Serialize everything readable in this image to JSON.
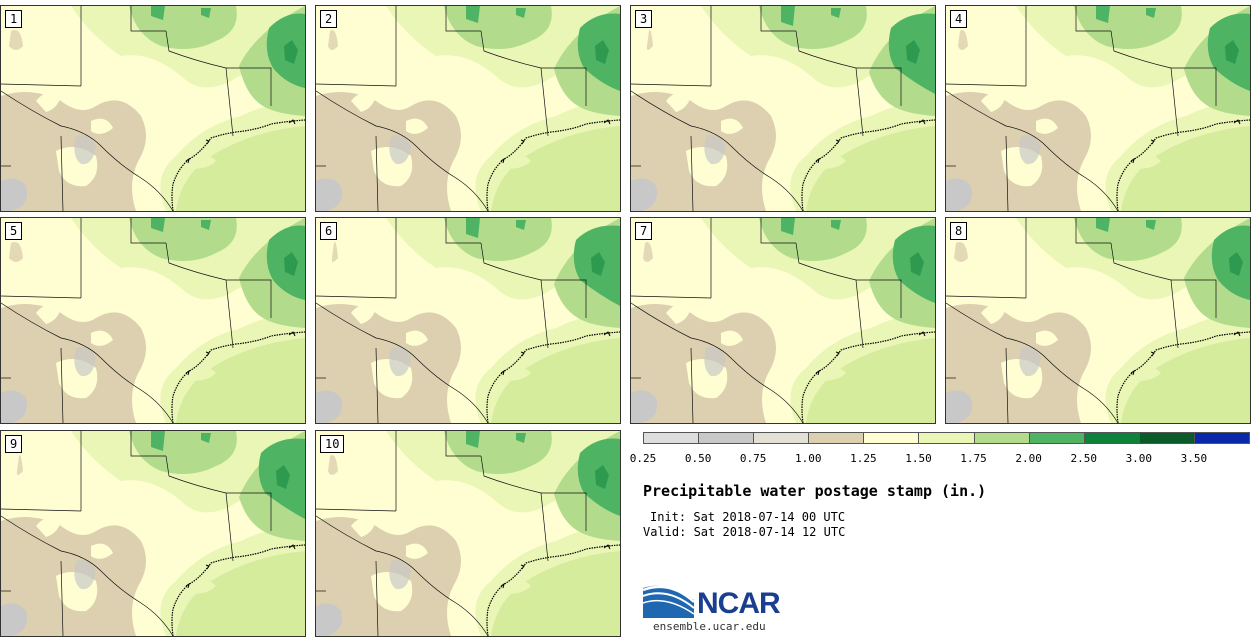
{
  "panels": [
    {
      "label": "1",
      "variant": 0
    },
    {
      "label": "2",
      "variant": 1
    },
    {
      "label": "3",
      "variant": 2
    },
    {
      "label": "4",
      "variant": 1
    },
    {
      "label": "5",
      "variant": 0
    },
    {
      "label": "6",
      "variant": 2
    },
    {
      "label": "7",
      "variant": 1
    },
    {
      "label": "8",
      "variant": 0
    },
    {
      "label": "9",
      "variant": 2
    },
    {
      "label": "10",
      "variant": 1
    }
  ],
  "legend": {
    "colors": [
      "#dddddd",
      "#c8c8c8",
      "#e3e0d6",
      "#ddd0b0",
      "#fefed2",
      "#eaf6b6",
      "#b2dc8c",
      "#4eb464",
      "#0e823a",
      "#0b5a2a",
      "#0a28aa"
    ],
    "ticks": [
      "0.25",
      "0.50",
      "0.75",
      "1.00",
      "1.25",
      "1.50",
      "1.75",
      "2.00",
      "2.50",
      "3.00",
      "3.50"
    ]
  },
  "title": "Precipitable water postage stamp (in.)",
  "init": "Init: Sat 2018-07-14 00 UTC",
  "valid": "Valid: Sat 2018-07-14 12 UTC",
  "logo_text": "NCAR",
  "url": "ensemble.ucar.edu"
}
